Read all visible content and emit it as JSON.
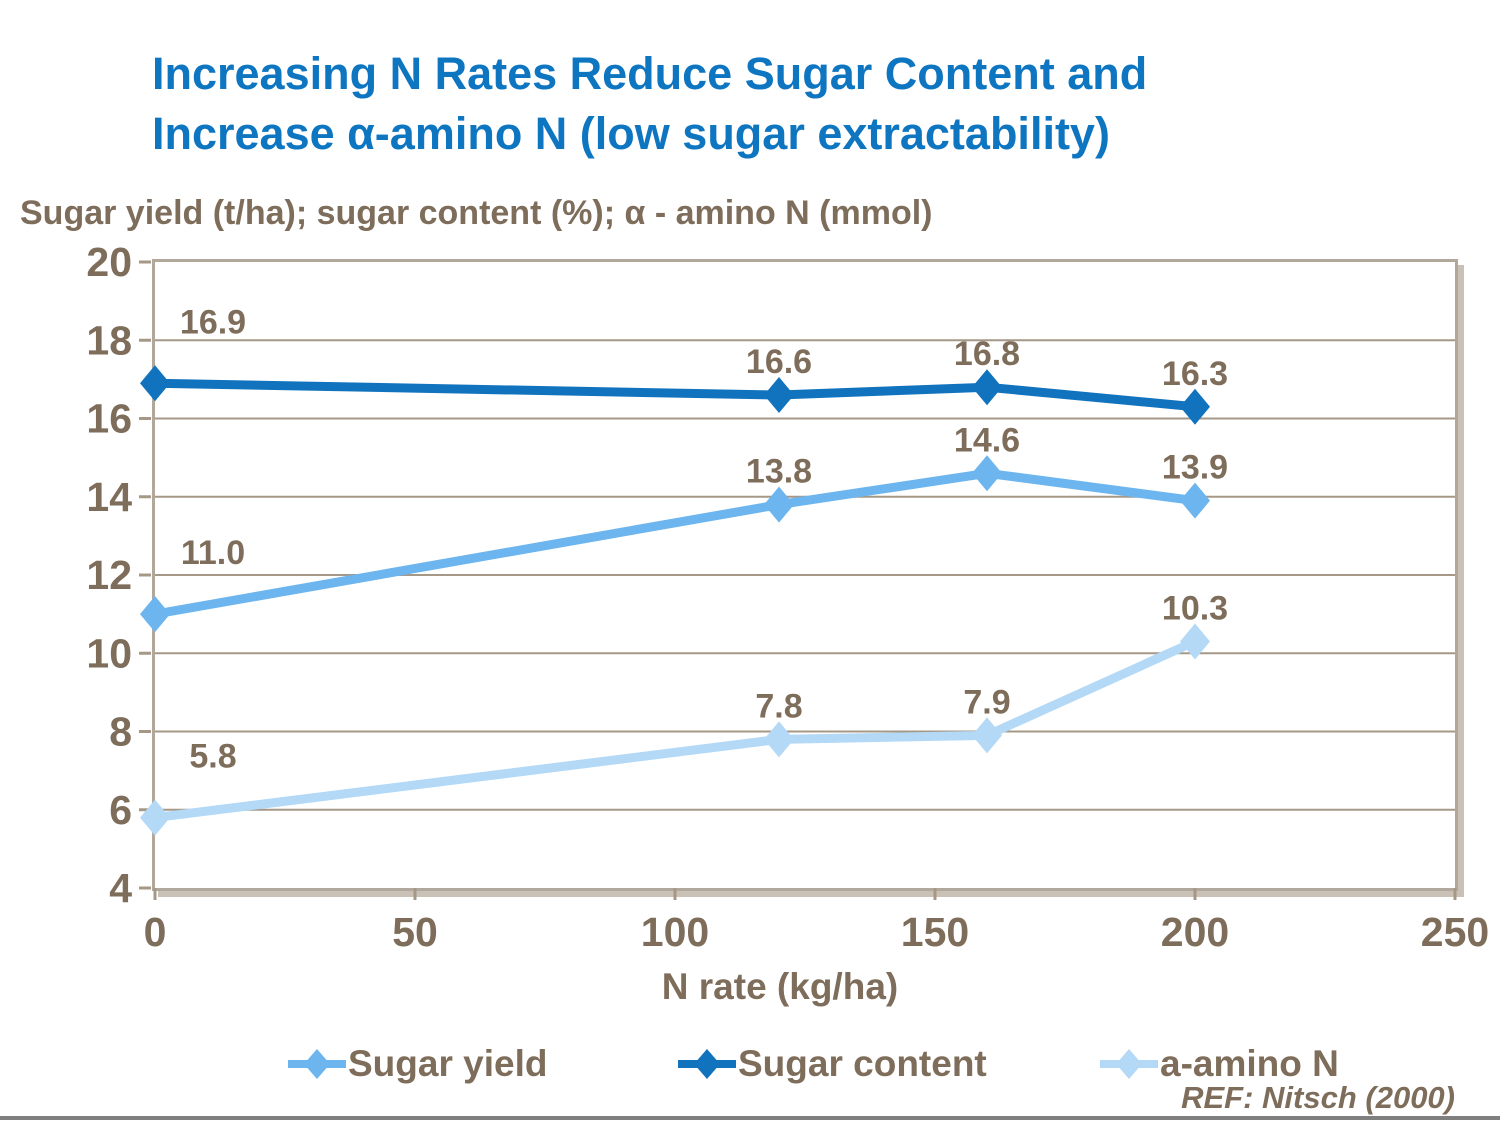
{
  "title": {
    "line1": "Increasing N Rates Reduce Sugar Content and",
    "line2": "Increase α-amino N (low sugar extractability)"
  },
  "subtitle": "Sugar yield (t/ha); sugar content (%); α - amino N (mmol)",
  "ref_note": "REF: Nitsch (2000)",
  "colors": {
    "title_blue": "#0e76c1",
    "text_brown": "#7d6d5a",
    "gridline": "#a59887",
    "plot_border": "#b2a79b",
    "bottom_rule": "#7f7f7f"
  },
  "chart_data": {
    "type": "line",
    "x": [
      0,
      120,
      160,
      200
    ],
    "series": [
      {
        "name": "Sugar yield",
        "color": "#6cb5ef",
        "values": [
          11.0,
          13.8,
          14.6,
          13.9
        ],
        "labels": [
          "11.0",
          "13.8",
          "14.6",
          "13.9"
        ]
      },
      {
        "name": "Sugar content",
        "color": "#1173bd",
        "values": [
          16.9,
          16.6,
          16.8,
          16.3
        ],
        "labels": [
          "16.9",
          "16.6",
          "16.8",
          "16.3"
        ]
      },
      {
        "name": "a-amino N",
        "color": "#b3d9f7",
        "values": [
          5.8,
          7.8,
          7.9,
          10.3
        ],
        "labels": [
          "5.8",
          "7.8",
          "7.9",
          "10.3"
        ]
      }
    ],
    "title": "Increasing N Rates Reduce Sugar Content and Increase α-amino N (low sugar extractability)",
    "xlabel": "N rate (kg/ha)",
    "ylabel": "Sugar yield (t/ha); sugar content (%); α - amino N (mmol)",
    "x_ticks": [
      0,
      50,
      100,
      150,
      200,
      250
    ],
    "y_ticks": [
      4,
      6,
      8,
      10,
      12,
      14,
      16,
      18,
      20
    ],
    "xlim": [
      0,
      250
    ],
    "ylim": [
      4,
      20
    ],
    "grid": "horizontal",
    "legend_position": "bottom",
    "marker": "diamond"
  }
}
